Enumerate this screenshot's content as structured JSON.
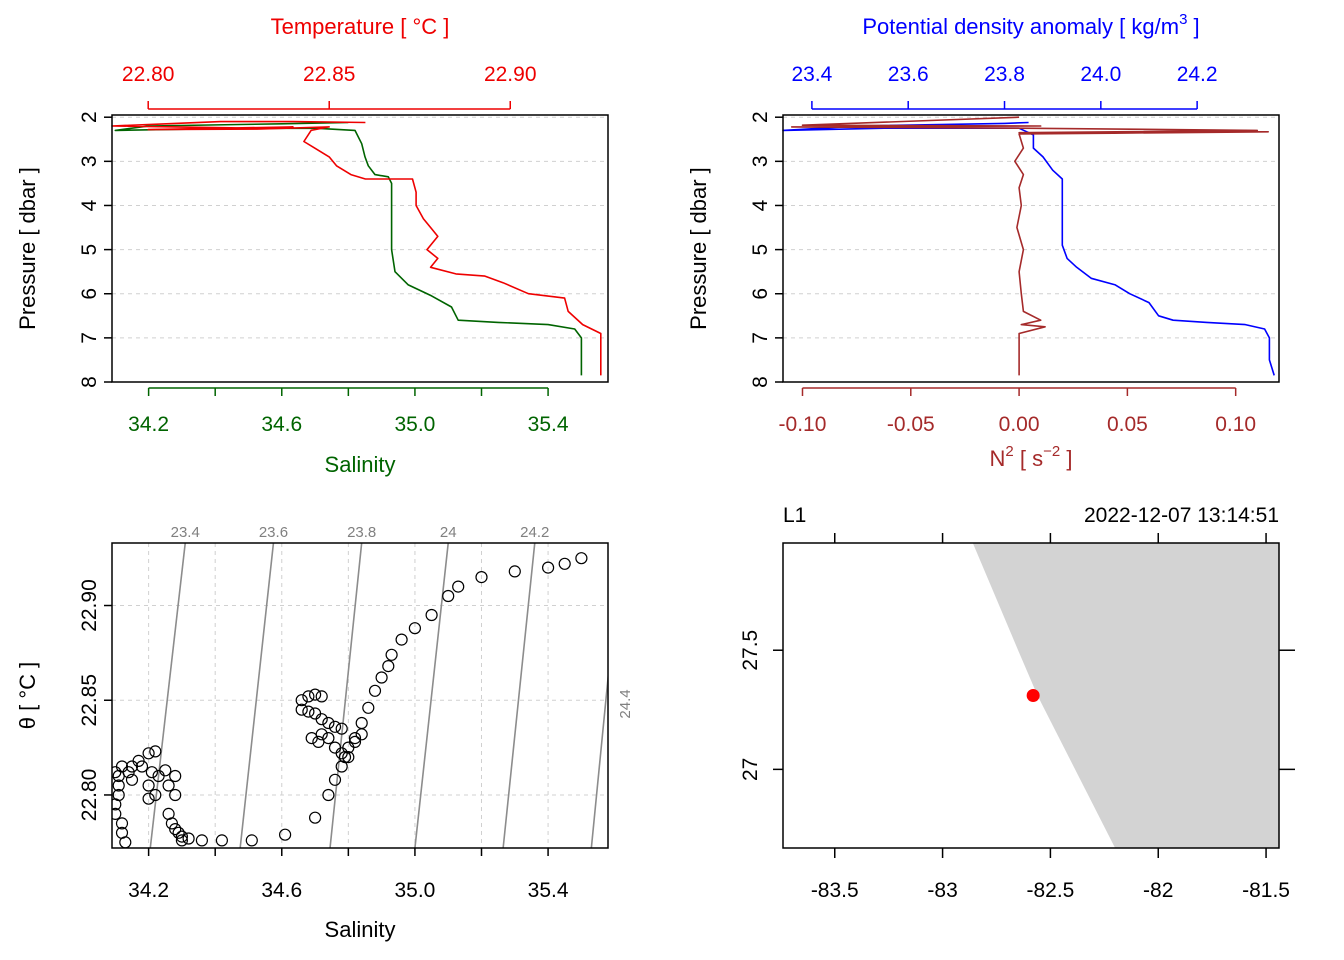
{
  "chart_data": [
    {
      "type": "line",
      "panel": "ts-profile",
      "title": "",
      "top_axis": {
        "label": "Temperature [ °C ]",
        "ticks": [
          "22.80",
          "22.85",
          "22.90"
        ],
        "tick_values": [
          22.8,
          22.85,
          22.9
        ],
        "range": [
          22.79,
          22.927
        ]
      },
      "bottom_axis": {
        "label": "Salinity",
        "ticks": [
          "34.2",
          "34.6",
          "35.0",
          "35.4"
        ],
        "tick_values": [
          34.2,
          34.6,
          35.0,
          35.4
        ],
        "range": [
          34.09,
          35.58
        ]
      },
      "y_axis": {
        "label": "Pressure [ dbar ]",
        "ticks": [
          "2",
          "3",
          "4",
          "5",
          "6",
          "7",
          "8"
        ],
        "tick_values": [
          2,
          3,
          4,
          5,
          6,
          7,
          8
        ],
        "range": [
          8.0,
          1.95
        ],
        "reversed": true
      },
      "grid": true,
      "series": [
        {
          "axis": "top",
          "color": "#ee0000",
          "points": [
            [
              22.86,
              2.12
            ],
            [
              22.84,
              2.1
            ],
            [
              22.82,
              2.1
            ],
            [
              22.79,
              2.2
            ],
            [
              22.83,
              2.25
            ],
            [
              22.84,
              2.22
            ],
            [
              22.8,
              2.28
            ],
            [
              22.83,
              2.27
            ],
            [
              22.85,
              2.22
            ],
            [
              22.845,
              2.3
            ],
            [
              22.843,
              2.55
            ],
            [
              22.846,
              2.7
            ],
            [
              22.85,
              2.9
            ],
            [
              22.852,
              3.1
            ],
            [
              22.856,
              3.3
            ],
            [
              22.86,
              3.4
            ],
            [
              22.873,
              3.4
            ],
            [
              22.874,
              3.7
            ],
            [
              22.874,
              4.0
            ],
            [
              22.876,
              4.3
            ],
            [
              22.878,
              4.5
            ],
            [
              22.88,
              4.7
            ],
            [
              22.877,
              5.0
            ],
            [
              22.88,
              5.2
            ],
            [
              22.878,
              5.4
            ],
            [
              22.885,
              5.55
            ],
            [
              22.893,
              5.6
            ],
            [
              22.898,
              5.75
            ],
            [
              22.905,
              6.0
            ],
            [
              22.915,
              6.1
            ],
            [
              22.916,
              6.4
            ],
            [
              22.92,
              6.7
            ],
            [
              22.925,
              6.9
            ],
            [
              22.925,
              7.3
            ],
            [
              22.925,
              7.85
            ]
          ]
        },
        {
          "axis": "bottom",
          "color": "#006400",
          "points": [
            [
              34.8,
              2.12
            ],
            [
              34.6,
              2.15
            ],
            [
              34.2,
              2.2
            ],
            [
              34.1,
              2.3
            ],
            [
              34.4,
              2.26
            ],
            [
              34.7,
              2.25
            ],
            [
              34.82,
              2.3
            ],
            [
              34.84,
              2.6
            ],
            [
              34.85,
              2.9
            ],
            [
              34.86,
              3.1
            ],
            [
              34.88,
              3.3
            ],
            [
              34.92,
              3.35
            ],
            [
              34.93,
              3.5
            ],
            [
              34.93,
              4.0
            ],
            [
              34.93,
              4.5
            ],
            [
              34.93,
              5.0
            ],
            [
              34.94,
              5.5
            ],
            [
              34.98,
              5.8
            ],
            [
              35.05,
              6.05
            ],
            [
              35.11,
              6.3
            ],
            [
              35.13,
              6.6
            ],
            [
              35.25,
              6.65
            ],
            [
              35.4,
              6.7
            ],
            [
              35.48,
              6.8
            ],
            [
              35.5,
              7.0
            ],
            [
              35.5,
              7.5
            ],
            [
              35.5,
              7.85
            ]
          ]
        }
      ]
    },
    {
      "type": "line",
      "panel": "density-n2-profile",
      "title": "",
      "top_axis": {
        "label": "Potential density anomaly [ kg/m",
        "label_superscript": "3",
        "label_suffix": " ]",
        "ticks": [
          "23.4",
          "23.6",
          "23.8",
          "24.0",
          "24.2"
        ],
        "tick_values": [
          23.4,
          23.6,
          23.8,
          24.0,
          24.2
        ],
        "range": [
          23.34,
          24.37
        ]
      },
      "bottom_axis": {
        "label": "N",
        "label_superscript": "2",
        "label_units": " [ s",
        "label_units_superscript": "−2",
        "label_suffix": " ]",
        "ticks": [
          "-0.10",
          "-0.05",
          "0.00",
          "0.05",
          "0.10"
        ],
        "tick_values": [
          -0.1,
          -0.05,
          0.0,
          0.05,
          0.1
        ],
        "range": [
          -0.109,
          0.12
        ]
      },
      "y_axis": {
        "label": "Pressure [ dbar ]",
        "ticks": [
          "2",
          "3",
          "4",
          "5",
          "6",
          "7",
          "8"
        ],
        "tick_values": [
          2,
          3,
          4,
          5,
          6,
          7,
          8
        ],
        "range": [
          8.0,
          1.95
        ],
        "reversed": true
      },
      "grid": true,
      "series": [
        {
          "axis": "top",
          "color": "#0000ff",
          "points": [
            [
              23.85,
              2.12
            ],
            [
              23.8,
              2.14
            ],
            [
              23.5,
              2.2
            ],
            [
              23.34,
              2.3
            ],
            [
              23.55,
              2.25
            ],
            [
              23.83,
              2.25
            ],
            [
              23.86,
              2.4
            ],
            [
              23.86,
              2.7
            ],
            [
              23.88,
              2.9
            ],
            [
              23.9,
              3.2
            ],
            [
              23.92,
              3.4
            ],
            [
              23.92,
              3.9
            ],
            [
              23.92,
              4.4
            ],
            [
              23.92,
              4.9
            ],
            [
              23.93,
              5.2
            ],
            [
              23.95,
              5.4
            ],
            [
              23.98,
              5.65
            ],
            [
              24.03,
              5.8
            ],
            [
              24.06,
              6.0
            ],
            [
              24.1,
              6.2
            ],
            [
              24.12,
              6.5
            ],
            [
              24.15,
              6.6
            ],
            [
              24.22,
              6.65
            ],
            [
              24.3,
              6.7
            ],
            [
              24.34,
              6.8
            ],
            [
              24.35,
              7.0
            ],
            [
              24.35,
              7.5
            ],
            [
              24.36,
              7.85
            ]
          ]
        },
        {
          "axis": "bottom",
          "color": "#a52a2a",
          "points": [
            [
              0.0,
              2.0
            ],
            [
              -0.1,
              2.18
            ],
            [
              0.01,
              2.2
            ],
            [
              -0.105,
              2.22
            ],
            [
              0.0,
              2.25
            ],
            [
              0.11,
              2.3
            ],
            [
              0.0,
              2.35
            ],
            [
              0.115,
              2.33
            ],
            [
              0.0,
              2.38
            ],
            [
              0.002,
              2.7
            ],
            [
              -0.002,
              3.0
            ],
            [
              0.002,
              3.3
            ],
            [
              0.0,
              3.6
            ],
            [
              0.001,
              4.0
            ],
            [
              -0.001,
              4.5
            ],
            [
              0.002,
              5.0
            ],
            [
              0.0,
              5.5
            ],
            [
              0.001,
              6.0
            ],
            [
              0.002,
              6.4
            ],
            [
              0.01,
              6.6
            ],
            [
              0.001,
              6.7
            ],
            [
              0.012,
              6.75
            ],
            [
              0.0,
              6.9
            ],
            [
              0.0,
              7.85
            ]
          ]
        }
      ]
    },
    {
      "type": "scatter",
      "panel": "ts-diagram",
      "title": "",
      "xlabel": "Salinity",
      "ylabel": "θ [ °C ]",
      "xticks": [
        "34.2",
        "34.6",
        "35.0",
        "35.4"
      ],
      "xtick_values": [
        34.2,
        34.6,
        35.0,
        35.4
      ],
      "yticks": [
        "22.80",
        "22.85",
        "22.90"
      ],
      "ytick_values": [
        22.8,
        22.85,
        22.9
      ],
      "xlim": [
        34.09,
        35.58
      ],
      "ylim": [
        22.772,
        22.933
      ],
      "grid": true,
      "isopycnals": [
        {
          "label": "23.4",
          "x_bottom": 34.205,
          "x_top": 34.31
        },
        {
          "label": "23.6",
          "x_bottom": 34.475,
          "x_top": 34.575
        },
        {
          "label": "23.8",
          "x_bottom": 34.745,
          "x_top": 34.84
        },
        {
          "label": "24",
          "x_bottom": 35.0,
          "x_top": 35.1
        },
        {
          "label": "24.2",
          "x_bottom": 35.265,
          "x_top": 35.36
        },
        {
          "label": "24.4",
          "x_bottom": 35.53,
          "x_top": 35.62
        }
      ],
      "points": [
        [
          34.1,
          22.79
        ],
        [
          34.1,
          22.795
        ],
        [
          34.11,
          22.8
        ],
        [
          34.11,
          22.805
        ],
        [
          34.11,
          22.81
        ],
        [
          34.12,
          22.785
        ],
        [
          34.12,
          22.78
        ],
        [
          34.13,
          22.775
        ],
        [
          34.1,
          22.812
        ],
        [
          34.12,
          22.815
        ],
        [
          34.14,
          22.812
        ],
        [
          34.15,
          22.808
        ],
        [
          34.15,
          22.815
        ],
        [
          34.17,
          22.818
        ],
        [
          34.18,
          22.815
        ],
        [
          34.2,
          22.822
        ],
        [
          34.22,
          22.823
        ],
        [
          34.21,
          22.812
        ],
        [
          34.2,
          22.805
        ],
        [
          34.2,
          22.798
        ],
        [
          34.22,
          22.8
        ],
        [
          34.23,
          22.81
        ],
        [
          34.25,
          22.813
        ],
        [
          34.26,
          22.805
        ],
        [
          34.28,
          22.81
        ],
        [
          34.28,
          22.8
        ],
        [
          34.26,
          22.79
        ],
        [
          34.27,
          22.785
        ],
        [
          34.28,
          22.782
        ],
        [
          34.29,
          22.78
        ],
        [
          34.3,
          22.778
        ],
        [
          34.3,
          22.776
        ],
        [
          34.32,
          22.777
        ],
        [
          34.36,
          22.776
        ],
        [
          34.42,
          22.776
        ],
        [
          34.51,
          22.776
        ],
        [
          34.61,
          22.779
        ],
        [
          34.7,
          22.788
        ],
        [
          34.74,
          22.8
        ],
        [
          34.76,
          22.808
        ],
        [
          34.78,
          22.815
        ],
        [
          34.79,
          22.82
        ],
        [
          34.8,
          22.825
        ],
        [
          34.82,
          22.83
        ],
        [
          34.84,
          22.838
        ],
        [
          34.86,
          22.846
        ],
        [
          34.88,
          22.855
        ],
        [
          34.9,
          22.862
        ],
        [
          34.92,
          22.868
        ],
        [
          34.93,
          22.874
        ],
        [
          34.96,
          22.882
        ],
        [
          35.0,
          22.888
        ],
        [
          35.05,
          22.895
        ],
        [
          35.1,
          22.905
        ],
        [
          35.13,
          22.91
        ],
        [
          35.2,
          22.915
        ],
        [
          35.3,
          22.918
        ],
        [
          35.4,
          22.92
        ],
        [
          35.45,
          22.922
        ],
        [
          35.5,
          22.925
        ],
        [
          34.66,
          22.85
        ],
        [
          34.68,
          22.852
        ],
        [
          34.7,
          22.853
        ],
        [
          34.72,
          22.852
        ],
        [
          34.66,
          22.845
        ],
        [
          34.68,
          22.844
        ],
        [
          34.7,
          22.843
        ],
        [
          34.72,
          22.84
        ],
        [
          34.74,
          22.838
        ],
        [
          34.76,
          22.836
        ],
        [
          34.78,
          22.835
        ],
        [
          34.72,
          22.832
        ],
        [
          34.74,
          22.83
        ],
        [
          34.76,
          22.825
        ],
        [
          34.78,
          22.822
        ],
        [
          34.69,
          22.83
        ],
        [
          34.71,
          22.828
        ],
        [
          34.8,
          22.82
        ],
        [
          34.82,
          22.828
        ],
        [
          34.84,
          22.832
        ]
      ]
    },
    {
      "type": "map",
      "panel": "station-map",
      "title": "",
      "station_label": "L1",
      "timestamp": "2022-12-07 13:14:51",
      "xticks": [
        "-83.5",
        "-83",
        "-82.5",
        "-82",
        "-81.5"
      ],
      "xtick_values": [
        -83.5,
        -83.0,
        -82.5,
        -82.0,
        -81.5
      ],
      "yticks": [
        "27",
        "27.5"
      ],
      "ytick_values": [
        27.0,
        27.5
      ],
      "xlim": [
        -83.74,
        -81.44
      ],
      "ylim": [
        26.67,
        27.95
      ],
      "land_color": "#d3d3d3",
      "land_polygon": [
        [
          -82.86,
          27.95
        ],
        [
          -82.65,
          27.5
        ],
        [
          -82.56,
          27.31
        ],
        [
          -82.2,
          26.67
        ],
        [
          -81.44,
          26.67
        ],
        [
          -81.44,
          27.95
        ]
      ],
      "station": {
        "lon": -82.58,
        "lat": 27.31,
        "color": "#ff0000"
      }
    }
  ]
}
